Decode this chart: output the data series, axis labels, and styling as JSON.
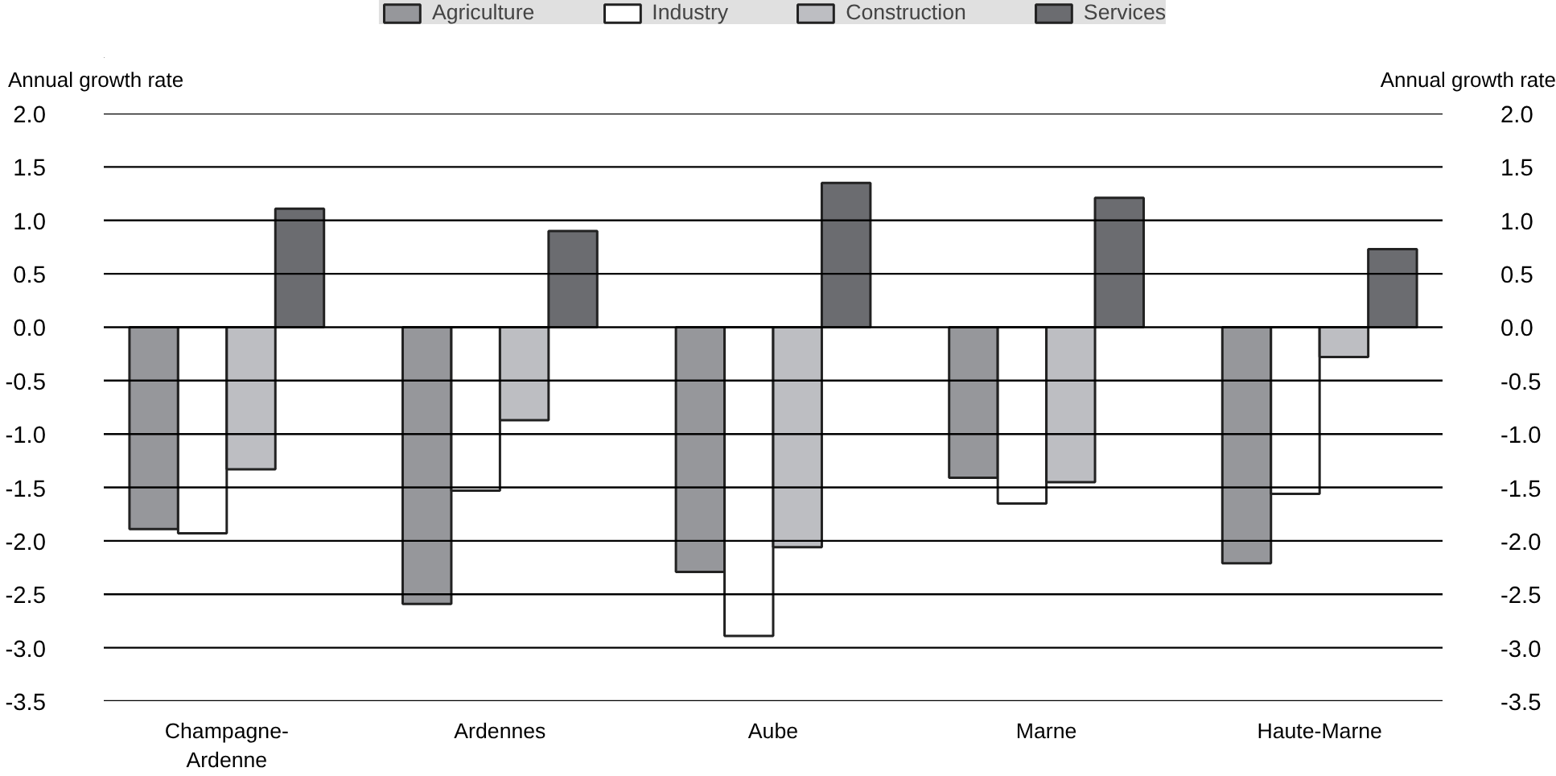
{
  "chart_data": {
    "type": "bar",
    "categories": [
      "Champagne-Ardenne",
      "Ardennes",
      "Aube",
      "Marne",
      "Haute-Marne"
    ],
    "series": [
      {
        "name": "Agriculture",
        "color": "#96979b",
        "values": [
          -1.89,
          -2.59,
          -2.29,
          -1.41,
          -2.21
        ]
      },
      {
        "name": "Industry",
        "color": "#ffffff",
        "values": [
          -1.93,
          -1.53,
          -2.89,
          -1.65,
          -1.56
        ]
      },
      {
        "name": "Construction",
        "color": "#bdbec2",
        "values": [
          -1.33,
          -0.87,
          -2.06,
          -1.45,
          -0.28
        ]
      },
      {
        "name": "Services",
        "color": "#6b6c70",
        "values": [
          1.11,
          0.9,
          1.35,
          1.21,
          0.73
        ]
      }
    ],
    "ylabel": "Annual growth rate",
    "y2label": "Annual growth rate",
    "ylim": [
      -3.5,
      2.0
    ],
    "yticks": [
      {
        "value": 2.0,
        "label": "2.0"
      },
      {
        "value": 1.5,
        "label": "1.5"
      },
      {
        "value": 1.0,
        "label": "1.0"
      },
      {
        "value": 0.5,
        "label": "0.5"
      },
      {
        "value": 0.0,
        "label": "0.0"
      },
      {
        "value": -0.5,
        "label": "-0.5"
      },
      {
        "value": -1.0,
        "label": "-1.0"
      },
      {
        "value": -1.5,
        "label": "-1.5"
      },
      {
        "value": -2.0,
        "label": "-2.0"
      },
      {
        "value": -2.5,
        "label": "-2.5"
      },
      {
        "value": -3.0,
        "label": "-3.0"
      },
      {
        "value": -3.5,
        "label": "-3.5"
      }
    ],
    "y2lim": [
      -3.5,
      2.0
    ],
    "y2ticks": [
      {
        "value": 2.0,
        "label": "2.0"
      },
      {
        "value": 1.5,
        "label": "1.5"
      },
      {
        "value": 1.0,
        "label": "1.0"
      },
      {
        "value": 0.5,
        "label": "0.5"
      },
      {
        "value": 0.0,
        "label": "0.0"
      },
      {
        "value": -0.5,
        "label": "-0.5"
      },
      {
        "value": -1.0,
        "label": "-1.0"
      },
      {
        "value": -1.5,
        "label": "-1.5"
      },
      {
        "value": -2.0,
        "label": "-2.0"
      },
      {
        "value": -2.5,
        "label": "-2.5"
      },
      {
        "value": -3.0,
        "label": "-3.0"
      },
      {
        "value": -3.5,
        "label": "-3.5"
      }
    ],
    "grid": "y",
    "legend": "top"
  }
}
